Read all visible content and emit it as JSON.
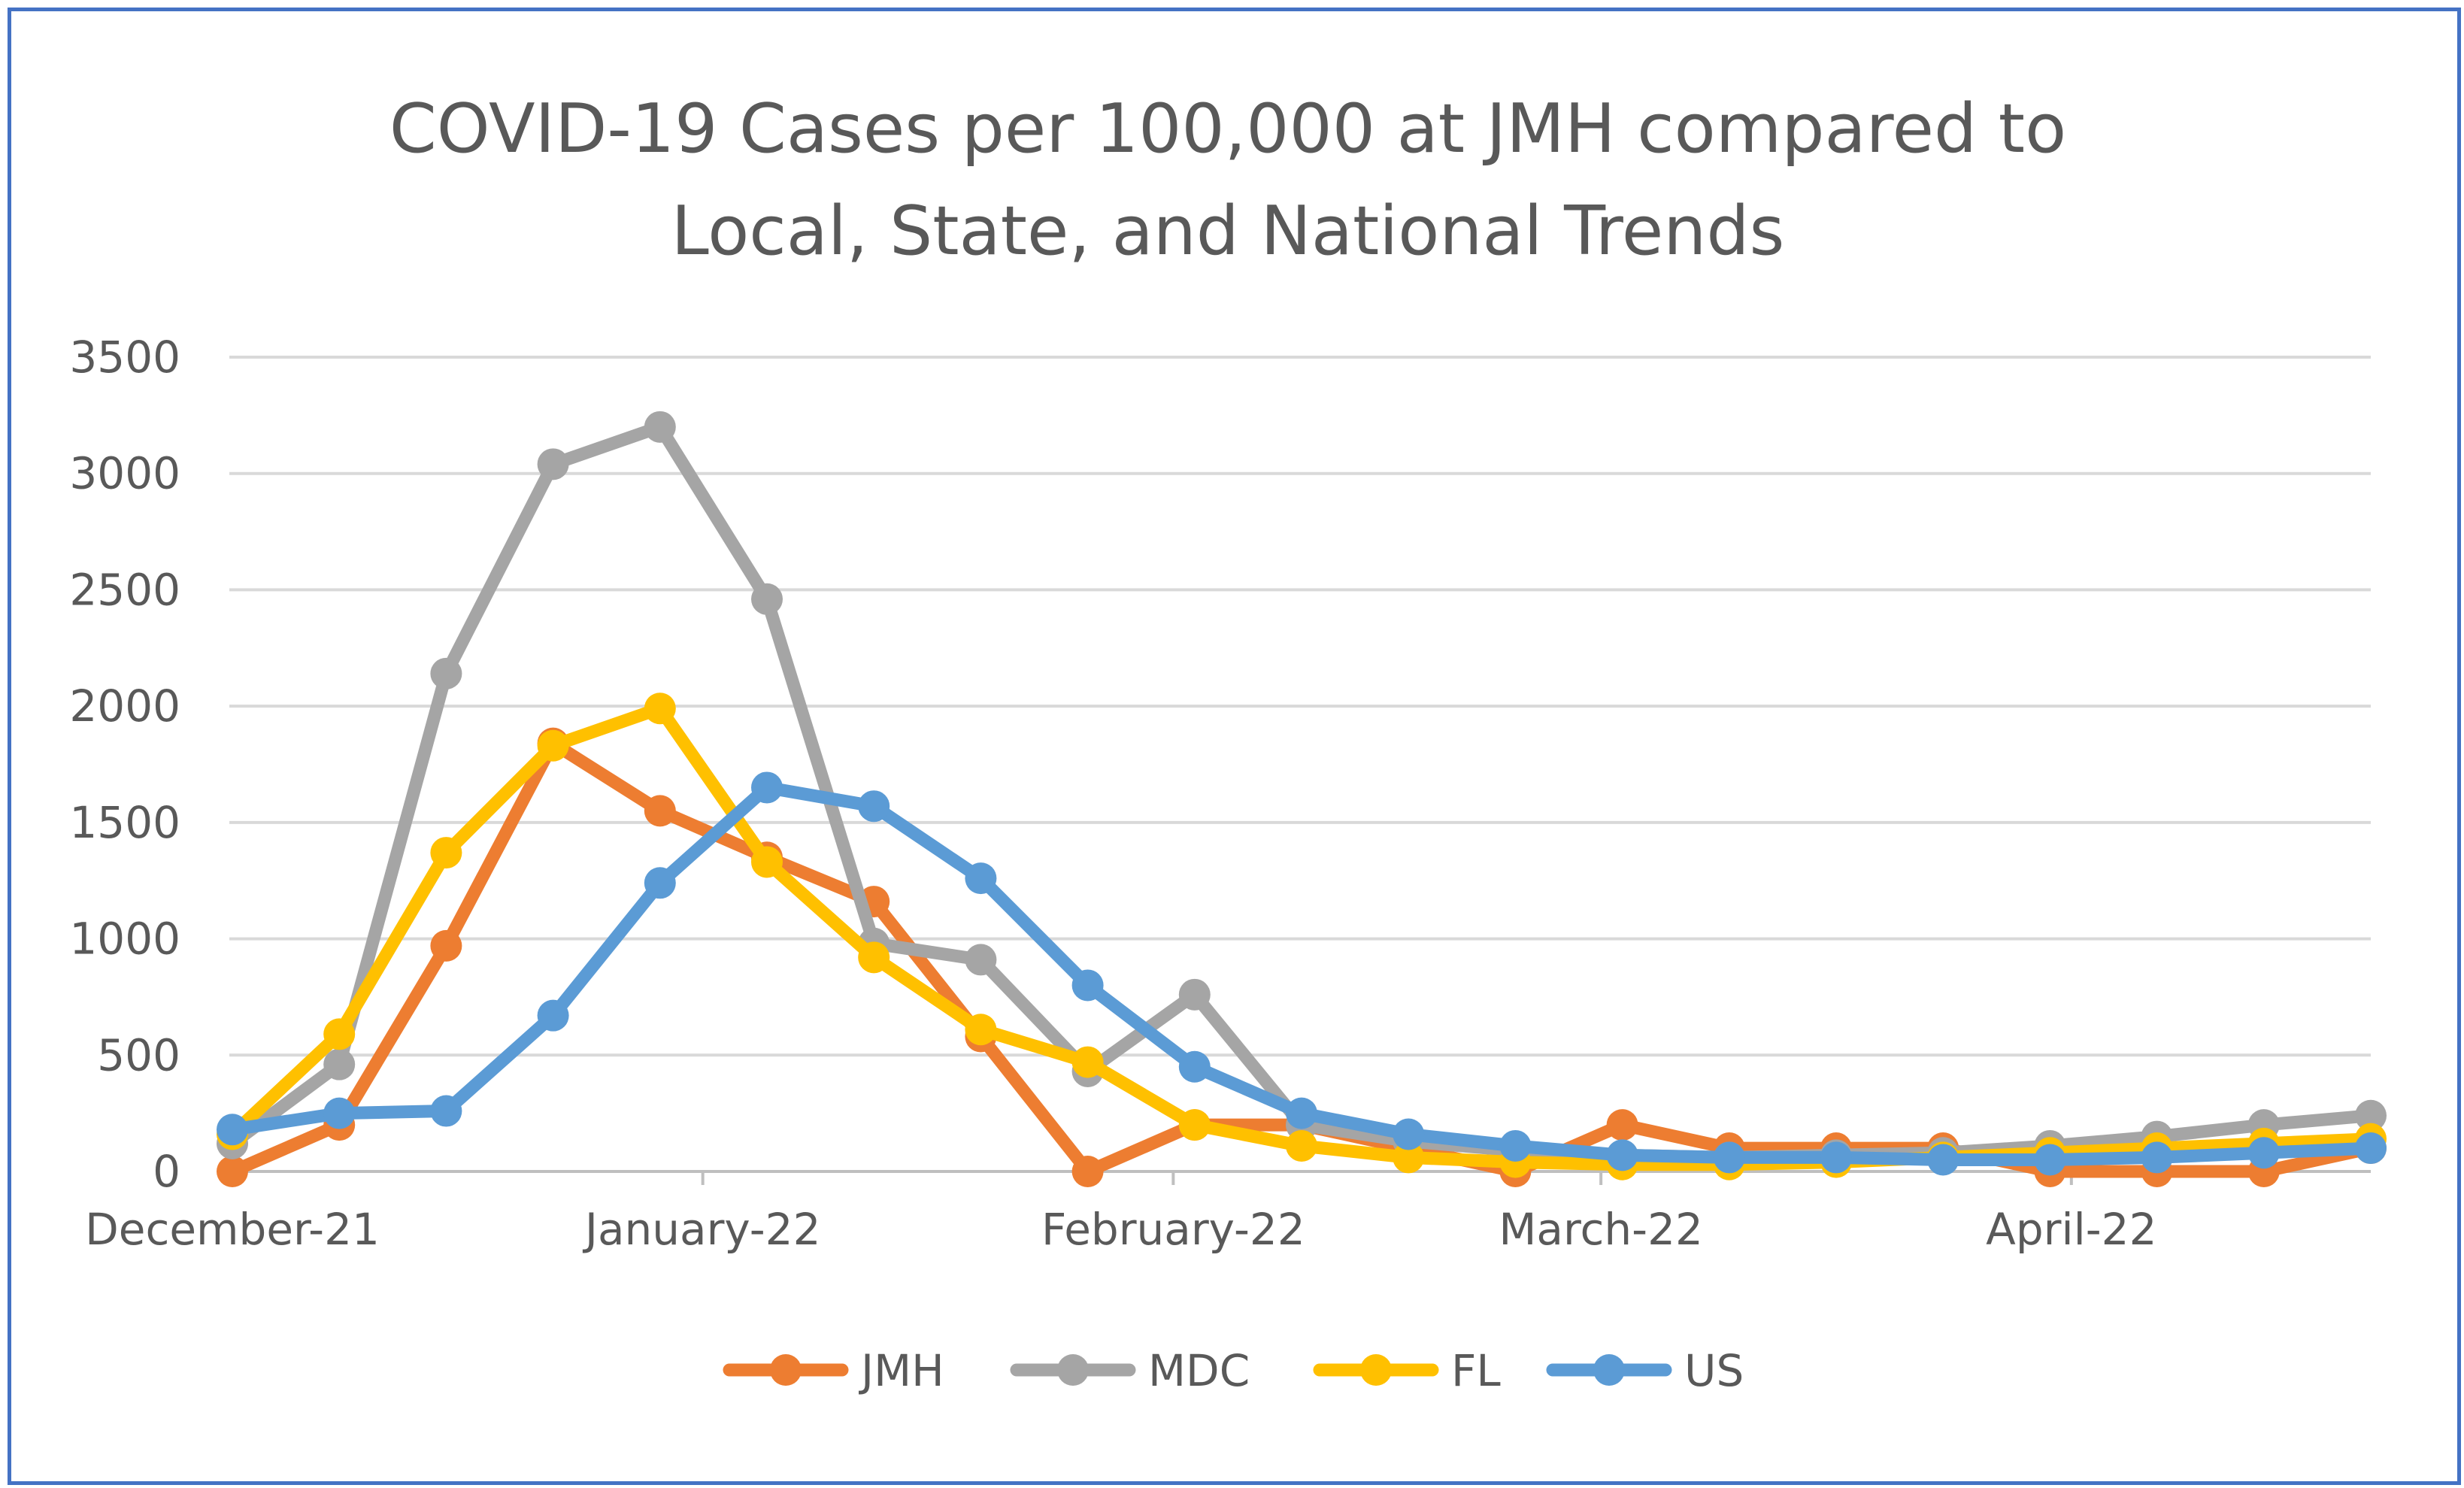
{
  "chart_data": {
    "type": "line",
    "title_lines": [
      "COVID-19 Cases per 100,000 at JMH compared to",
      "Local, State, and National Trends"
    ],
    "xlabel": "",
    "ylabel": "",
    "ylim": [
      0,
      3500
    ],
    "y_ticks": [
      "0",
      "500",
      "1000",
      "1500",
      "2000",
      "2500",
      "3000",
      "3500"
    ],
    "y_tick_values": [
      0,
      500,
      1000,
      1500,
      2000,
      2500,
      3000,
      3500
    ],
    "x_tick_labels": [
      "December-21",
      "January-22",
      "February-22",
      "March-22",
      "April-22"
    ],
    "x_tick_positions": [
      0,
      4.4,
      8.8,
      12.8,
      17.2
    ],
    "x_divider_positions": [
      4.4,
      8.8,
      12.8,
      17.2
    ],
    "x_count": 21,
    "grid": true,
    "legend_position": "bottom",
    "series": [
      {
        "name": "JMH",
        "color": "#ED7D31",
        "values": [
          0,
          200,
          970,
          1840,
          1550,
          1350,
          1160,
          580,
          0,
          200,
          200,
          100,
          0,
          200,
          100,
          100,
          100,
          0,
          0,
          0,
          100
        ]
      },
      {
        "name": "MDC",
        "color": "#A5A5A5",
        "values": [
          120,
          460,
          2140,
          3040,
          3200,
          2460,
          980,
          910,
          430,
          760,
          200,
          130,
          90,
          70,
          60,
          70,
          80,
          110,
          150,
          200,
          240
        ]
      },
      {
        "name": "FL",
        "color": "#FFC000",
        "values": [
          160,
          590,
          1370,
          1830,
          1990,
          1330,
          920,
          610,
          470,
          200,
          110,
          60,
          40,
          30,
          30,
          40,
          60,
          80,
          100,
          120,
          140
        ]
      },
      {
        "name": "US",
        "color": "#5B9BD5",
        "values": [
          180,
          250,
          260,
          670,
          1240,
          1650,
          1570,
          1260,
          800,
          450,
          250,
          160,
          110,
          70,
          60,
          60,
          50,
          50,
          60,
          80,
          100
        ]
      }
    ]
  }
}
